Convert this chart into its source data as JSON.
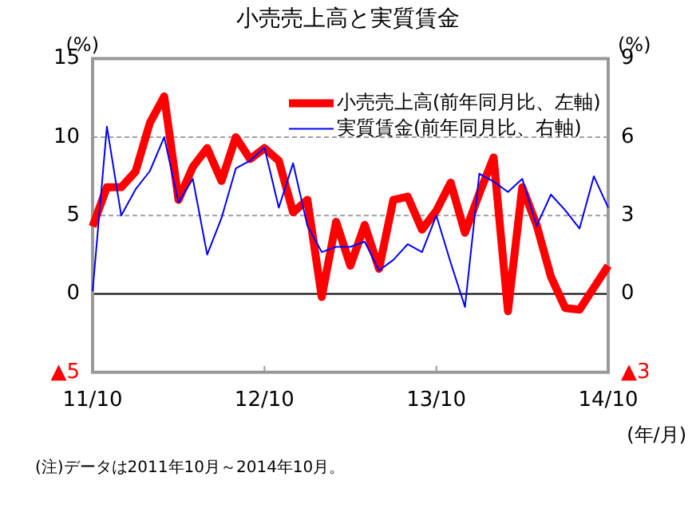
{
  "chart_data": {
    "type": "line",
    "title": "小売売上高と実質賃金",
    "xlabel": "(年/月)",
    "ylabel": "(%)",
    "y2label": "(%)",
    "categories": [
      "11/10",
      null,
      null,
      null,
      null,
      null,
      null,
      null,
      null,
      null,
      null,
      null,
      "12/10",
      null,
      null,
      null,
      null,
      null,
      null,
      null,
      null,
      null,
      null,
      null,
      "13/10",
      null,
      null,
      null,
      null,
      null,
      null,
      null,
      null,
      null,
      null,
      null,
      "14/10"
    ],
    "series": [
      {
        "name": "小売売上高(前年同月比、左軸)",
        "color": "#ff0000",
        "axis": "y",
        "values": [
          4.3,
          6.8,
          6.8,
          7.8,
          10.9,
          12.6,
          6.0,
          8.1,
          9.3,
          7.2,
          10.0,
          8.6,
          9.3,
          8.5,
          5.2,
          6.0,
          -0.2,
          4.6,
          1.8,
          4.4,
          1.6,
          6.0,
          6.2,
          4.1,
          5.3,
          7.1,
          3.9,
          6.4,
          8.7,
          -1.1,
          6.8,
          4.4,
          1.1,
          -0.9,
          -1.0,
          0.4,
          1.8
        ]
      },
      {
        "name": "実質賃金(前年同月比、右軸)",
        "color": "#0000ff",
        "axis": "y2",
        "values": [
          0.1,
          6.4,
          3.0,
          4.0,
          4.7,
          6.0,
          3.5,
          4.4,
          1.5,
          2.9,
          4.8,
          5.1,
          5.6,
          3.3,
          5.0,
          2.6,
          1.6,
          1.8,
          1.8,
          2.0,
          0.9,
          1.3,
          1.9,
          1.6,
          3.0,
          1.2,
          -0.5,
          4.6,
          4.3,
          3.9,
          4.4,
          2.6,
          3.8,
          3.2,
          2.5,
          4.5,
          3.3
        ]
      }
    ],
    "ylim": [
      -5,
      15
    ],
    "yticks": [
      {
        "value": -5,
        "label": "▲5"
      },
      0,
      5,
      10,
      15
    ],
    "y2lim": [
      -3,
      9
    ],
    "y2ticks": [
      {
        "value": -3,
        "label": "▲3"
      },
      0,
      3,
      6,
      9
    ],
    "grid": "y",
    "legend": "top right",
    "marker": "none",
    "line_style": "solid",
    "annotations": [
      "(注)データは2011年10月～2014年10月。"
    ]
  }
}
